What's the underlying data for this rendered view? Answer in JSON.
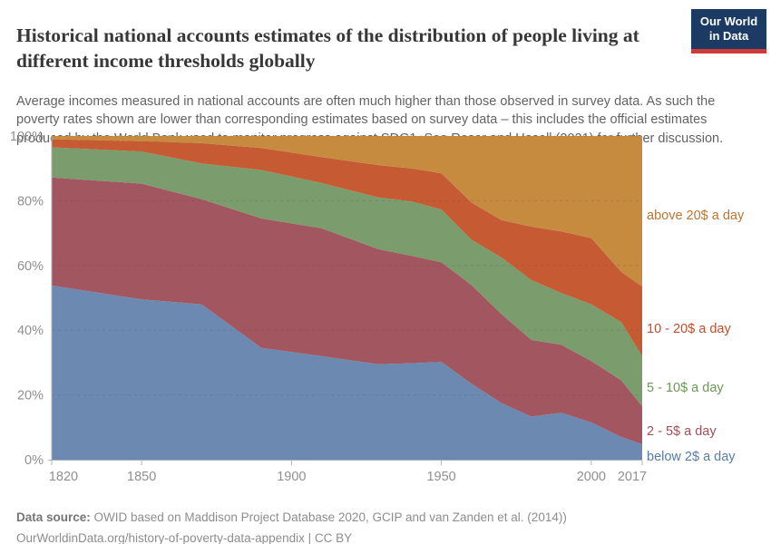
{
  "header": {
    "title": "Historical national accounts estimates of the distribution of people living at different income thresholds globally",
    "subtitle": "Average incomes measured in national accounts are often much higher than those observed in survey data. As such the poverty rates shown are lower than corresponding estimates based on survey data – this includes the official estimates produced by the World Bank used to monitor progress against SDG1. See Roser and Hasell (2021) for further discussion.",
    "logo": {
      "line1": "Our World",
      "line2": "in Data",
      "bg_color": "#1b3a64",
      "accent_color": "#cf3b3b"
    }
  },
  "footer": {
    "datasource_label": "Data source:",
    "datasource_text": " OWID based on Maddison Project Database 2020, GCIP and van Zanden et al. (2014))",
    "link_line": "OurWorldinData.org/history-of-poverty-data-appendix | CC BY"
  },
  "chart_data": {
    "type": "area",
    "stacked": true,
    "unit": "%",
    "xlim": [
      1820,
      2017
    ],
    "ylim": [
      0,
      100
    ],
    "grid": true,
    "legend_position": "right",
    "x": [
      1820,
      1850,
      1870,
      1890,
      1910,
      1929,
      1940,
      1950,
      1960,
      1970,
      1980,
      1990,
      2000,
      2010,
      2017
    ],
    "x_ticks": [
      1820,
      1850,
      1900,
      1950,
      2000,
      2017
    ],
    "y_ticks": [
      0,
      20,
      40,
      60,
      80,
      100
    ],
    "series": [
      {
        "name": "below 2$ a day",
        "color": "#6c8ab1",
        "label_color": "#577caa",
        "values": [
          53.8,
          49.5,
          48.0,
          34.5,
          32.0,
          29.5,
          29.8,
          30.2,
          23.5,
          17.5,
          13.3,
          14.5,
          11.5,
          7.0,
          4.8
        ]
      },
      {
        "name": "2 - 5$ a day",
        "color": "#a2565f",
        "label_color": "#a04e58",
        "values": [
          33.4,
          35.8,
          32.5,
          40.0,
          39.5,
          35.5,
          33.2,
          30.8,
          30.5,
          27.5,
          23.7,
          21.0,
          19.0,
          17.5,
          11.7
        ]
      },
      {
        "name": "5 - 10$ a day",
        "color": "#7b9c6d",
        "label_color": "#6d9758",
        "values": [
          9.3,
          9.9,
          11.0,
          15.0,
          14.0,
          16.0,
          16.8,
          16.3,
          14.0,
          17.5,
          18.5,
          16.0,
          17.5,
          18.0,
          15.5
        ]
      },
      {
        "name": "10 - 20$ a day",
        "color": "#c55a33",
        "label_color": "#c14e2c",
        "values": [
          2.5,
          3.2,
          6.3,
          6.8,
          8.0,
          10.0,
          10.2,
          11.2,
          11.5,
          11.5,
          16.5,
          19.0,
          20.5,
          15.5,
          21.5
        ]
      },
      {
        "name": "above 20$ a day",
        "color": "#c78b3f",
        "label_color": "#bd7430",
        "values": [
          1.0,
          1.6,
          2.2,
          3.7,
          6.5,
          9.0,
          10.0,
          11.5,
          20.5,
          26.0,
          28.0,
          29.5,
          31.5,
          42.0,
          46.5
        ]
      }
    ]
  }
}
